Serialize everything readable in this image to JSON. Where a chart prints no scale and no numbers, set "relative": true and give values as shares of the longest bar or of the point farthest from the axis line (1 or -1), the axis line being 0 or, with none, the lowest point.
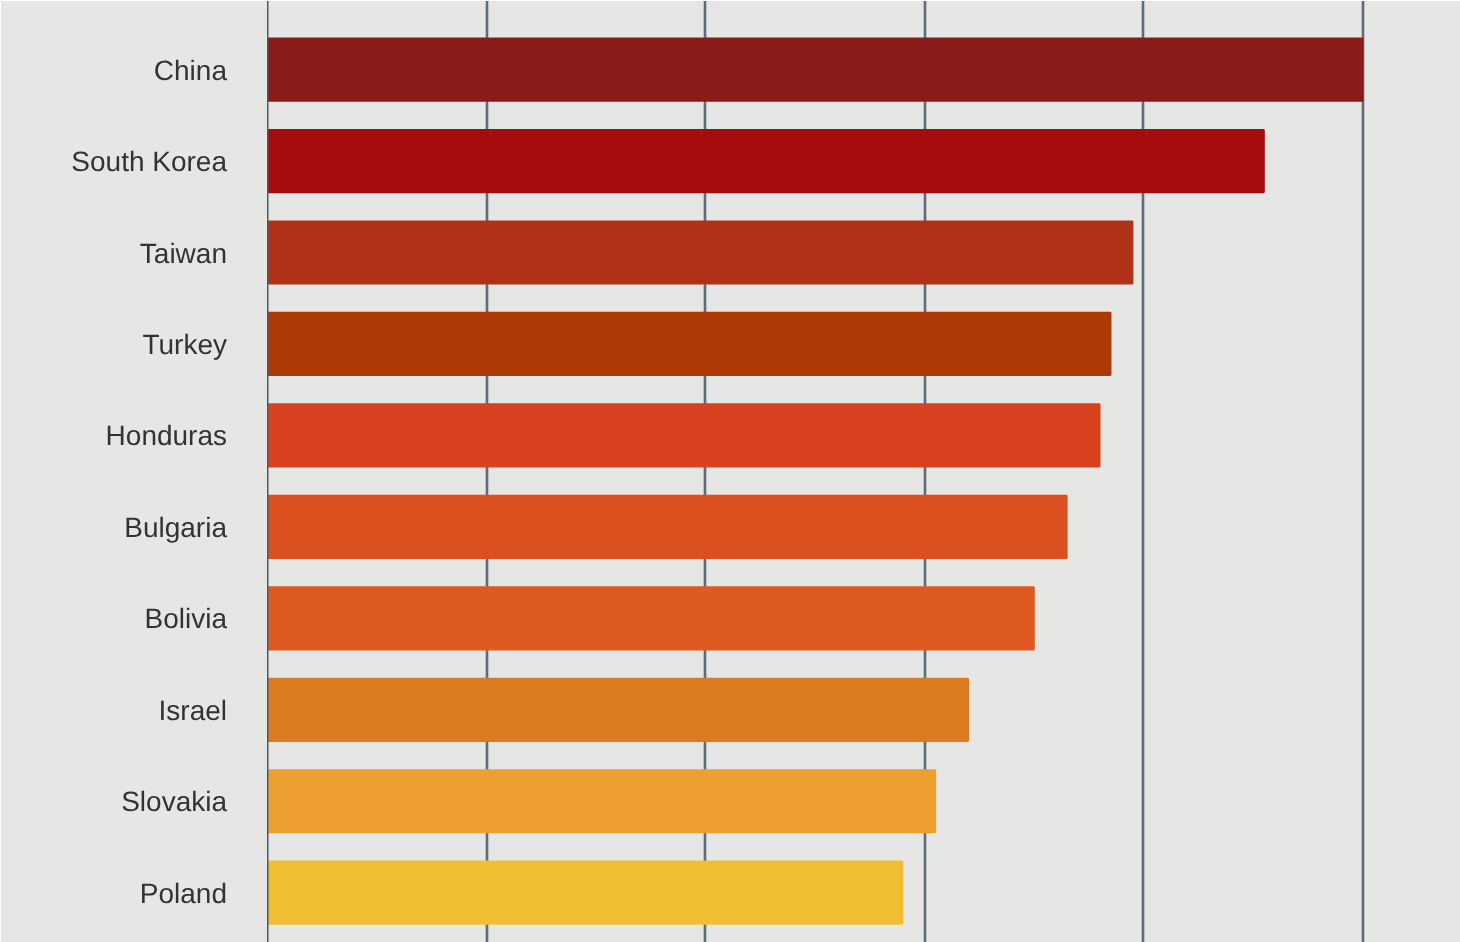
{
  "chart_data": {
    "type": "bar",
    "orientation": "horizontal",
    "relative": true,
    "grid": "x",
    "categories": [
      "China",
      "South Korea",
      "Taiwan",
      "Turkey",
      "Honduras",
      "Bulgaria",
      "Bolivia",
      "Israel",
      "Slovakia",
      "Poland"
    ],
    "values": [
      1,
      0.91,
      0.79,
      0.77,
      0.76,
      0.73,
      0.7,
      0.64,
      0.61,
      0.58
    ],
    "colors": [
      "#8b1a1a",
      "#a50d0d",
      "#b03018",
      "#ad3a06",
      "#d9421e",
      "#dc5020",
      "#de5a20",
      "#dc7a22",
      "#eda030",
      "#f0be32"
    ]
  }
}
